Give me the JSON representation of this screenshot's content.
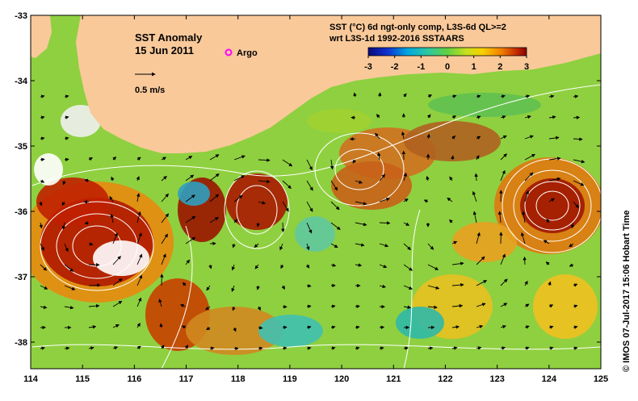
{
  "map": {
    "title": "SST Anomaly",
    "date": "15 Jun 2011",
    "argo_label": "Argo",
    "scale_label": "0.5 m/s",
    "product_line1": "SST (°C) 6d ngt-only comp, L3S-6d QL>=2",
    "product_line2": "wrt L3S-1d 1992-2016 SSTAARS",
    "colorbar_ticks": [
      "-3",
      "-2",
      "-1",
      "0",
      "1",
      "2",
      "3"
    ],
    "credit": "© IMOS 07-Jul-2017 15:06 Hobart Time",
    "lon_ticks": [
      "114",
      "115",
      "116",
      "117",
      "118",
      "119",
      "120",
      "121",
      "122",
      "123",
      "124",
      "125"
    ],
    "lat_ticks": [
      "-33",
      "-34",
      "-35",
      "-36",
      "-37",
      "-38"
    ],
    "colors": {
      "land": "#f9c99a",
      "argo": "#ff00ff",
      "contour": "#ffffff",
      "frame": "#000000"
    }
  }
}
